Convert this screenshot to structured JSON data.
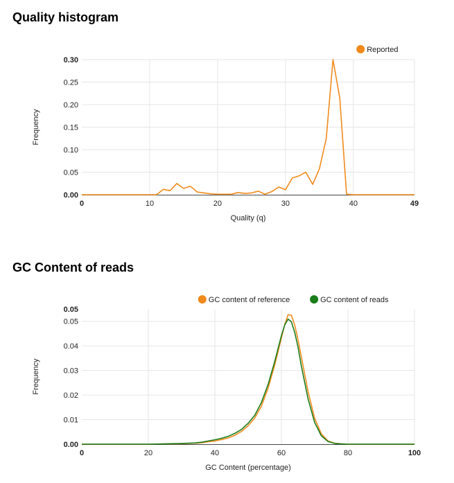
{
  "charts": [
    {
      "title": "Quality histogram",
      "chart_data": {
        "type": "line",
        "title": "Quality histogram",
        "xlabel": "Quality (q)",
        "ylabel": "Frequency",
        "xlim": [
          0,
          49
        ],
        "ylim": [
          0,
          0.3
        ],
        "x_ticks": [
          0,
          10,
          20,
          30,
          40,
          49
        ],
        "y_ticks": [
          0.0,
          0.05,
          0.1,
          0.15,
          0.2,
          0.25,
          0.3
        ],
        "grid": true,
        "legend_position": "top-right",
        "series": [
          {
            "name": "Reported",
            "color": "#f08a1c",
            "x": [
              0,
              1,
              2,
              3,
              4,
              5,
              6,
              7,
              8,
              9,
              10,
              11,
              12,
              13,
              14,
              15,
              16,
              17,
              18,
              19,
              20,
              21,
              22,
              23,
              24,
              25,
              26,
              27,
              28,
              29,
              30,
              31,
              32,
              33,
              34,
              35,
              36,
              37,
              38,
              39,
              40,
              41,
              42,
              43,
              44,
              45,
              46,
              47,
              48,
              49
            ],
            "y": [
              0,
              0,
              0,
              0,
              0,
              0,
              0,
              0,
              0,
              0,
              0,
              0,
              0.012,
              0.009,
              0.025,
              0.014,
              0.019,
              0.006,
              0.004,
              0.002,
              0.001,
              0.001,
              0.001,
              0.005,
              0.003,
              0.004,
              0.008,
              0.001,
              0.007,
              0.017,
              0.011,
              0.037,
              0.042,
              0.05,
              0.023,
              0.058,
              0.125,
              0.3,
              0.215,
              0.001,
              0,
              0,
              0,
              0,
              0,
              0,
              0,
              0,
              0,
              0
            ]
          }
        ]
      }
    },
    {
      "title": "GC Content of reads",
      "chart_data": {
        "type": "line",
        "title": "GC Content of reads",
        "xlabel": "GC Content (percentage)",
        "ylabel": "Frequency",
        "xlim": [
          0,
          100
        ],
        "ylim": [
          0,
          0.055
        ],
        "x_ticks": [
          0,
          20,
          40,
          60,
          80,
          100
        ],
        "y_ticks": [
          0.0,
          0.01,
          0.02,
          0.03,
          0.04,
          0.05
        ],
        "y_max_label": "0.05",
        "grid": true,
        "legend_position": "top-right",
        "series": [
          {
            "name": "GC content of reference",
            "color": "#f08a1c",
            "x": [
              0,
              10,
              20,
              25,
              30,
              34,
              36,
              38,
              40,
              42,
              44,
              46,
              48,
              50,
              52,
              54,
              56,
              58,
              60,
              61,
              62,
              63,
              64,
              65,
              66,
              68,
              70,
              72,
              74,
              76,
              78,
              80,
              90,
              100
            ],
            "y": [
              0,
              0,
              0,
              0.0001,
              0.0002,
              0.0004,
              0.0006,
              0.001,
              0.0013,
              0.0019,
              0.0025,
              0.0036,
              0.0052,
              0.0075,
              0.0107,
              0.0155,
              0.0228,
              0.0323,
              0.0432,
              0.0487,
              0.0527,
              0.0525,
              0.0485,
              0.0425,
              0.0355,
              0.0215,
              0.0105,
              0.0042,
              0.0013,
              0.0004,
              0.0001,
              0,
              0,
              0
            ]
          },
          {
            "name": "GC content of reads",
            "color": "#1a7d1a",
            "x": [
              0,
              10,
              20,
              25,
              30,
              34,
              36,
              38,
              40,
              42,
              44,
              46,
              48,
              50,
              52,
              54,
              56,
              58,
              60,
              61,
              62,
              63,
              64,
              65,
              66,
              68,
              70,
              72,
              74,
              76,
              78,
              80,
              90,
              100
            ],
            "y": [
              0,
              0,
              0,
              0.0001,
              0.0003,
              0.0005,
              0.0008,
              0.0013,
              0.0018,
              0.0024,
              0.0032,
              0.0044,
              0.006,
              0.0085,
              0.0118,
              0.017,
              0.0243,
              0.0337,
              0.0442,
              0.0485,
              0.0509,
              0.0498,
              0.0455,
              0.0395,
              0.0318,
              0.0185,
              0.0088,
              0.0034,
              0.0011,
              0.0003,
              0.0001,
              0,
              0,
              0
            ]
          }
        ]
      }
    }
  ]
}
